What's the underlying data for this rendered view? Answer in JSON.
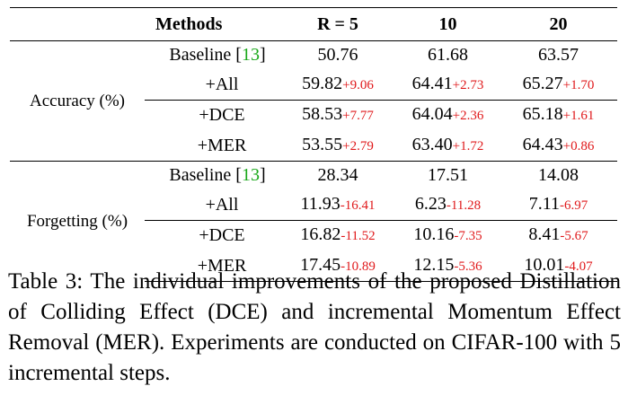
{
  "table": {
    "headers": [
      "Methods",
      "R = 5",
      "10",
      "20"
    ],
    "groups": [
      {
        "label": "Accuracy (%)",
        "rows": [
          {
            "method": "Baseline",
            "cite": "13",
            "values": [
              {
                "v": "50.76",
                "d": ""
              },
              {
                "v": "61.68",
                "d": ""
              },
              {
                "v": "63.57",
                "d": ""
              }
            ]
          },
          {
            "method": "+All",
            "cite": "",
            "values": [
              {
                "v": "59.82",
                "d": "+9.06"
              },
              {
                "v": "64.41",
                "d": "+2.73"
              },
              {
                "v": "65.27",
                "d": "+1.70"
              }
            ]
          },
          {
            "method": "+DCE",
            "cite": "",
            "values": [
              {
                "v": "58.53",
                "d": "+7.77"
              },
              {
                "v": "64.04",
                "d": "+2.36"
              },
              {
                "v": "65.18",
                "d": "+1.61"
              }
            ]
          },
          {
            "method": "+MER",
            "cite": "",
            "values": [
              {
                "v": "53.55",
                "d": "+2.79"
              },
              {
                "v": "63.40",
                "d": "+1.72"
              },
              {
                "v": "64.43",
                "d": "+0.86"
              }
            ]
          }
        ]
      },
      {
        "label": "Forgetting (%)",
        "rows": [
          {
            "method": "Baseline",
            "cite": "13",
            "values": [
              {
                "v": "28.34",
                "d": ""
              },
              {
                "v": "17.51",
                "d": ""
              },
              {
                "v": "14.08",
                "d": ""
              }
            ]
          },
          {
            "method": "+All",
            "cite": "",
            "values": [
              {
                "v": "11.93",
                "d": "-16.41"
              },
              {
                "v": "6.23",
                "d": "-11.28"
              },
              {
                "v": "7.11",
                "d": "-6.97"
              }
            ]
          },
          {
            "method": "+DCE",
            "cite": "",
            "values": [
              {
                "v": "16.82",
                "d": "-11.52"
              },
              {
                "v": "10.16",
                "d": "-7.35"
              },
              {
                "v": "8.41",
                "d": "-5.67"
              }
            ]
          },
          {
            "method": "+MER",
            "cite": "",
            "values": [
              {
                "v": "17.45",
                "d": "-10.89"
              },
              {
                "v": "12.15",
                "d": "-5.36"
              },
              {
                "v": "10.01",
                "d": "-4.07"
              }
            ]
          }
        ]
      }
    ]
  },
  "caption": "Table 3: The individual improvements of the proposed Distillation of Colliding Effect (DCE) and incremental Momentum Effect Removal (MER). Experiments are conducted on CIFAR-100 with 5 incremental steps.",
  "colors": {
    "citation": "#1aa81a",
    "delta": "#e0191b"
  }
}
